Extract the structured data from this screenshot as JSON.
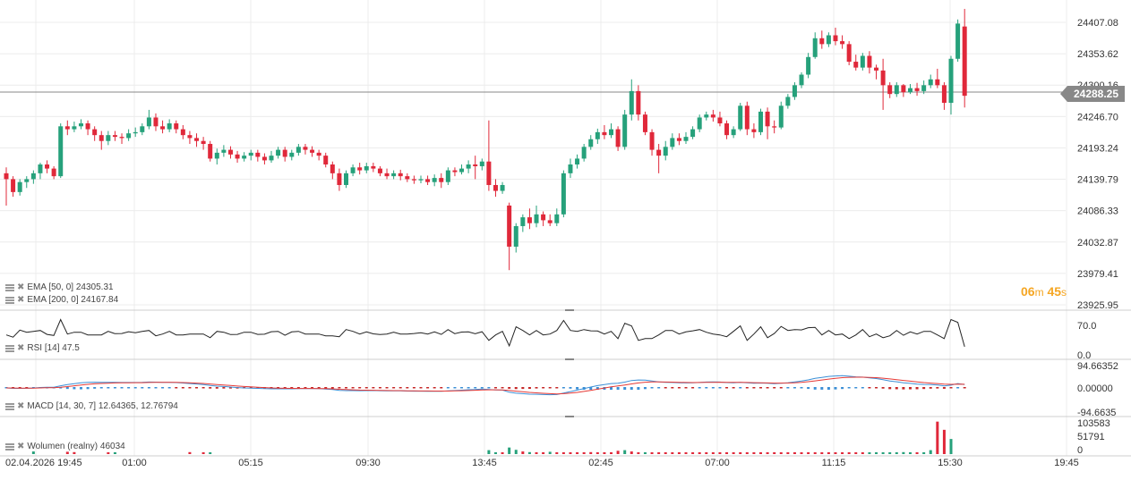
{
  "chart_data": [
    {
      "type": "candlestick",
      "title": "",
      "x_ticks": [
        "02.04.2026 19:45",
        "01:00",
        "05:15",
        "09:30",
        "13:45",
        "02:45",
        "07:00",
        "11:15",
        "15:30",
        "19:45"
      ],
      "y_ticks": [
        "24407.08",
        "24353.62",
        "24300.16",
        "24246.70",
        "24193.24",
        "24139.79",
        "24086.33",
        "24032.87",
        "23979.41",
        "23925.95"
      ],
      "ylim": [
        23925.95,
        24407.08
      ],
      "last_price": "24288.25",
      "countdown": {
        "min": "06",
        "min_unit": "m",
        "sec": "45",
        "sec_unit": "s"
      },
      "indicators": [
        {
          "label": "EMA [50, 0] 24305.31"
        },
        {
          "label": "EMA [200, 0] 24167.84"
        }
      ],
      "colors": {
        "up": "#26a17b",
        "down": "#e0283a",
        "grid": "#ececec",
        "price_line": "#888888"
      },
      "candles": [
        [
          24150,
          24140,
          24160,
          24095
        ],
        [
          24140,
          24118,
          24145,
          24110
        ],
        [
          24118,
          24135,
          24140,
          24112
        ],
        [
          24135,
          24140,
          24145,
          24125
        ],
        [
          24140,
          24150,
          24155,
          24132
        ],
        [
          24150,
          24165,
          24168,
          24140
        ],
        [
          24165,
          24158,
          24172,
          24150
        ],
        [
          24158,
          24145,
          24162,
          24140
        ],
        [
          24145,
          24230,
          24235,
          24142
        ],
        [
          24230,
          24225,
          24240,
          24215
        ],
        [
          24225,
          24230,
          24238,
          24220
        ],
        [
          24230,
          24235,
          24242,
          24225
        ],
        [
          24235,
          24225,
          24240,
          24215
        ],
        [
          24225,
          24215,
          24230,
          24205
        ],
        [
          24215,
          24205,
          24222,
          24190
        ],
        [
          24205,
          24215,
          24222,
          24198
        ],
        [
          24215,
          24212,
          24222,
          24205
        ],
        [
          24212,
          24210,
          24218,
          24200
        ],
        [
          24210,
          24218,
          24225,
          24205
        ],
        [
          24218,
          24220,
          24228,
          24212
        ],
        [
          24220,
          24230,
          24235,
          24215
        ],
        [
          24230,
          24245,
          24258,
          24225
        ],
        [
          24245,
          24230,
          24252,
          24222
        ],
        [
          24230,
          24225,
          24240,
          24218
        ],
        [
          24225,
          24235,
          24242,
          24220
        ],
        [
          24235,
          24225,
          24240,
          24218
        ],
        [
          24225,
          24215,
          24232,
          24208
        ],
        [
          24215,
          24210,
          24222,
          24200
        ],
        [
          24210,
          24205,
          24218,
          24195
        ],
        [
          24205,
          24200,
          24212,
          24190
        ],
        [
          24200,
          24175,
          24205,
          24170
        ],
        [
          24175,
          24185,
          24192,
          24165
        ],
        [
          24185,
          24190,
          24198,
          24178
        ],
        [
          24190,
          24182,
          24196,
          24175
        ],
        [
          24182,
          24175,
          24188,
          24168
        ],
        [
          24175,
          24180,
          24186,
          24170
        ],
        [
          24180,
          24185,
          24190,
          24172
        ],
        [
          24185,
          24178,
          24190,
          24170
        ],
        [
          24178,
          24172,
          24184,
          24165
        ],
        [
          24172,
          24180,
          24188,
          24168
        ],
        [
          24180,
          24190,
          24195,
          24175
        ],
        [
          24190,
          24178,
          24195,
          24170
        ],
        [
          24178,
          24185,
          24190,
          24172
        ],
        [
          24185,
          24195,
          24200,
          24180
        ],
        [
          24195,
          24190,
          24200,
          24182
        ],
        [
          24190,
          24185,
          24196,
          24178
        ],
        [
          24185,
          24180,
          24190,
          24172
        ],
        [
          24180,
          24165,
          24185,
          24160
        ],
        [
          24165,
          24150,
          24170,
          24140
        ],
        [
          24150,
          24130,
          24158,
          24120
        ],
        [
          24130,
          24150,
          24155,
          24125
        ],
        [
          24150,
          24160,
          24165,
          24145
        ],
        [
          24160,
          24155,
          24168,
          24148
        ],
        [
          24155,
          24162,
          24168,
          24150
        ],
        [
          24162,
          24158,
          24168,
          24152
        ],
        [
          24158,
          24150,
          24162,
          24145
        ],
        [
          24150,
          24145,
          24158,
          24140
        ],
        [
          24145,
          24150,
          24155,
          24140
        ],
        [
          24150,
          24145,
          24156,
          24138
        ],
        [
          24145,
          24140,
          24150,
          24135
        ],
        [
          24140,
          24138,
          24146,
          24132
        ],
        [
          24138,
          24140,
          24146,
          24133
        ],
        [
          24140,
          24135,
          24146,
          24130
        ],
        [
          24135,
          24142,
          24148,
          24128
        ],
        [
          24142,
          24135,
          24150,
          24125
        ],
        [
          24135,
          24155,
          24160,
          24130
        ],
        [
          24155,
          24152,
          24160,
          24145
        ],
        [
          24152,
          24158,
          24165,
          24148
        ],
        [
          24158,
          24165,
          24172,
          24150
        ],
        [
          24165,
          24162,
          24180,
          24140
        ],
        [
          24162,
          24170,
          24175,
          24155
        ],
        [
          24170,
          24130,
          24240,
          24120
        ],
        [
          24130,
          24120,
          24140,
          24110
        ],
        [
          24120,
          24130,
          24135,
          24115
        ],
        [
          24095,
          24025,
          24100,
          23985
        ],
        [
          24025,
          24060,
          24065,
          24015
        ],
        [
          24060,
          24075,
          24080,
          24050
        ],
        [
          24075,
          24065,
          24090,
          24055
        ],
        [
          24065,
          24080,
          24095,
          24058
        ],
        [
          24080,
          24070,
          24085,
          24060
        ],
        [
          24070,
          24065,
          24080,
          24060
        ],
        [
          24065,
          24080,
          24090,
          24060
        ],
        [
          24080,
          24150,
          24155,
          24075
        ],
        [
          24150,
          24165,
          24175,
          24142
        ],
        [
          24165,
          24175,
          24182,
          24158
        ],
        [
          24175,
          24195,
          24200,
          24170
        ],
        [
          24195,
          24208,
          24215,
          24190
        ],
        [
          24208,
          24220,
          24226,
          24200
        ],
        [
          24220,
          24215,
          24232,
          24208
        ],
        [
          24215,
          24225,
          24235,
          24210
        ],
        [
          24225,
          24195,
          24230,
          24188
        ],
        [
          24195,
          24250,
          24258,
          24190
        ],
        [
          24250,
          24290,
          24310,
          24240
        ],
        [
          24290,
          24250,
          24300,
          24240
        ],
        [
          24250,
          24220,
          24255,
          24215
        ],
        [
          24220,
          24190,
          24225,
          24180
        ],
        [
          24190,
          24180,
          24200,
          24150
        ],
        [
          24180,
          24195,
          24205,
          24172
        ],
        [
          24195,
          24210,
          24218,
          24190
        ],
        [
          24210,
          24205,
          24218,
          24198
        ],
        [
          24205,
          24212,
          24220,
          24200
        ],
        [
          24212,
          24225,
          24230,
          24208
        ],
        [
          24225,
          24245,
          24250,
          24220
        ],
        [
          24245,
          24250,
          24255,
          24240
        ],
        [
          24250,
          24245,
          24258,
          24238
        ],
        [
          24245,
          24235,
          24255,
          24230
        ],
        [
          24235,
          24215,
          24240,
          24208
        ],
        [
          24215,
          24225,
          24230,
          24210
        ],
        [
          24225,
          24265,
          24270,
          24222
        ],
        [
          24265,
          24225,
          24272,
          24215
        ],
        [
          24225,
          24220,
          24235,
          24210
        ],
        [
          24220,
          24255,
          24260,
          24215
        ],
        [
          24255,
          24230,
          24262,
          24208
        ],
        [
          24230,
          24228,
          24240,
          24218
        ],
        [
          24228,
          24265,
          24272,
          24225
        ],
        [
          24265,
          24280,
          24285,
          24260
        ],
        [
          24280,
          24300,
          24305,
          24275
        ],
        [
          24300,
          24318,
          24322,
          24295
        ],
        [
          24318,
          24348,
          24355,
          24312
        ],
        [
          24348,
          24380,
          24390,
          24345
        ],
        [
          24380,
          24370,
          24393,
          24362
        ],
        [
          24370,
          24385,
          24390,
          24365
        ],
        [
          24385,
          24375,
          24398,
          24368
        ],
        [
          24375,
          24370,
          24385,
          24362
        ],
        [
          24370,
          24340,
          24375,
          24334
        ],
        [
          24340,
          24330,
          24352,
          24325
        ],
        [
          24330,
          24350,
          24355,
          24325
        ],
        [
          24350,
          24330,
          24358,
          24320
        ],
        [
          24330,
          24325,
          24335,
          24310
        ],
        [
          24325,
          24300,
          24345,
          24258
        ],
        [
          24300,
          24285,
          24305,
          24278
        ],
        [
          24285,
          24300,
          24305,
          24280
        ],
        [
          24300,
          24288,
          24302,
          24280
        ],
        [
          24288,
          24295,
          24302,
          24285
        ],
        [
          24295,
          24290,
          24304,
          24282
        ],
        [
          24290,
          24300,
          24308,
          24285
        ],
        [
          24300,
          24310,
          24318,
          24295
        ],
        [
          24310,
          24300,
          24328,
          24295
        ],
        [
          24300,
          24270,
          24305,
          24258
        ],
        [
          24270,
          24345,
          24350,
          24250
        ],
        [
          24345,
          24405,
          24412,
          24340
        ],
        [
          24400,
          24282,
          24430,
          24262
        ]
      ],
      "rsi": {
        "label": "RSI [14] 47.5",
        "ticks": [
          "70.0",
          "0.0"
        ]
      },
      "macd": {
        "label": "MACD [14, 30, 7] 12.64365, 12.76794",
        "ticks": [
          "94.66352",
          "0.00000",
          "-94.6635"
        ]
      },
      "volume": {
        "label": "Wolumen (realny) 46034",
        "ticks": [
          "103583",
          "51791",
          "0"
        ],
        "values": [
          [
            71,
            12000,
            1
          ],
          [
            72,
            5000,
            1
          ],
          [
            73,
            3000,
            0
          ],
          [
            74,
            20000,
            1
          ],
          [
            75,
            13000,
            1
          ],
          [
            76,
            8000,
            0
          ],
          [
            77,
            6000,
            1
          ],
          [
            78,
            4000,
            0
          ],
          [
            79,
            5000,
            0
          ],
          [
            80,
            7000,
            1
          ],
          [
            81,
            3000,
            0
          ],
          [
            82,
            2000,
            0
          ],
          [
            83,
            5000,
            0
          ],
          [
            84,
            2000,
            0
          ],
          [
            85,
            3000,
            0
          ],
          [
            86,
            6000,
            0
          ],
          [
            87,
            3000,
            0
          ],
          [
            88,
            4000,
            0
          ],
          [
            89,
            3000,
            0
          ],
          [
            90,
            10000,
            0
          ],
          [
            91,
            12000,
            1
          ],
          [
            92,
            8000,
            0
          ],
          [
            93,
            5000,
            0
          ],
          [
            94,
            4000,
            1
          ],
          [
            95,
            3000,
            0
          ],
          [
            96,
            2000,
            0
          ],
          [
            97,
            4000,
            0
          ],
          [
            98,
            3000,
            0
          ],
          [
            99,
            5000,
            0
          ],
          [
            100,
            3000,
            0
          ],
          [
            101,
            4000,
            0
          ],
          [
            102,
            2000,
            0
          ],
          [
            103,
            3000,
            0
          ],
          [
            104,
            4000,
            0
          ],
          [
            105,
            3000,
            0
          ],
          [
            106,
            2000,
            0
          ],
          [
            107,
            3000,
            0
          ],
          [
            108,
            5000,
            0
          ],
          [
            109,
            3000,
            0
          ],
          [
            110,
            4000,
            0
          ],
          [
            111,
            3000,
            0
          ],
          [
            112,
            4000,
            0
          ],
          [
            113,
            3000,
            0
          ],
          [
            114,
            5000,
            0
          ],
          [
            115,
            3000,
            0
          ],
          [
            116,
            2000,
            0
          ],
          [
            117,
            3000,
            0
          ],
          [
            118,
            4000,
            0
          ],
          [
            119,
            3000,
            0
          ],
          [
            120,
            5000,
            0
          ],
          [
            121,
            3000,
            0
          ],
          [
            122,
            2000,
            0
          ],
          [
            123,
            3000,
            0
          ],
          [
            124,
            4000,
            0
          ],
          [
            125,
            3000,
            0
          ],
          [
            126,
            2000,
            0
          ],
          [
            127,
            4000,
            1
          ],
          [
            128,
            3000,
            1
          ],
          [
            129,
            5000,
            1
          ],
          [
            130,
            4000,
            1
          ],
          [
            131,
            3000,
            1
          ],
          [
            132,
            6000,
            1
          ],
          [
            133,
            5000,
            1
          ],
          [
            134,
            2000,
            0
          ],
          [
            135,
            4000,
            1
          ],
          [
            136,
            12000,
            1
          ],
          [
            137,
            99000,
            0
          ],
          [
            138,
            74000,
            0
          ],
          [
            139,
            46034,
            1
          ]
        ],
        "early": [
          [
            4,
            8000,
            1
          ],
          [
            9,
            7000,
            0
          ],
          [
            10,
            6000,
            0
          ],
          [
            15,
            5000,
            0
          ],
          [
            16,
            4000,
            1
          ],
          [
            27,
            6000,
            0
          ],
          [
            29,
            5000,
            0
          ],
          [
            30,
            4000,
            1
          ]
        ]
      }
    }
  ]
}
